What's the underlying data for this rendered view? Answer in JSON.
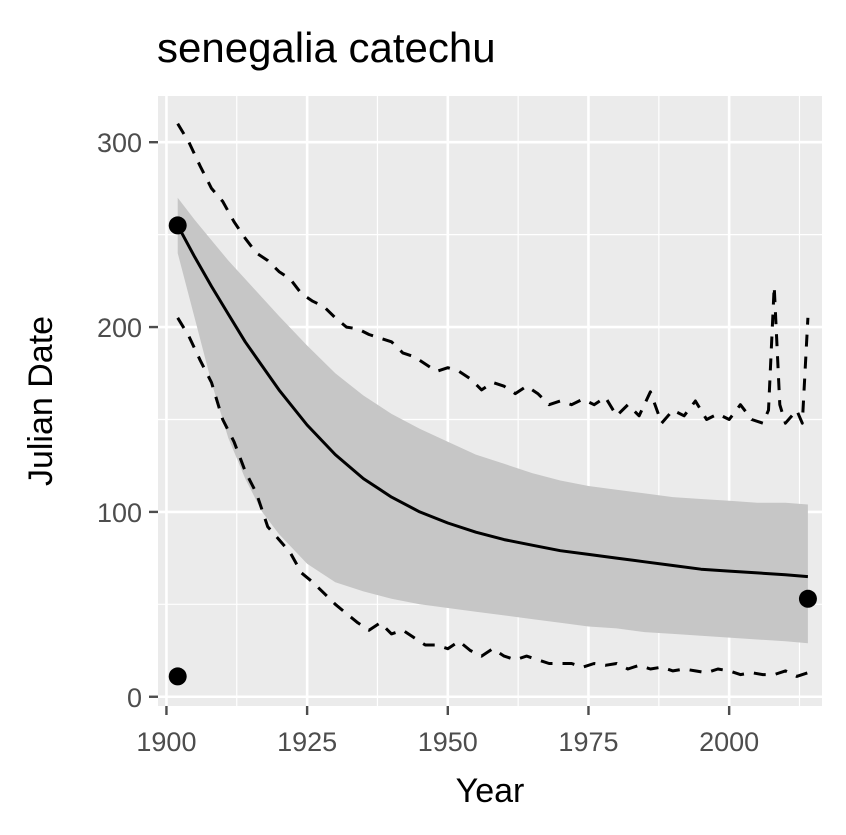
{
  "chart_data": {
    "type": "line",
    "title": "senegalia catechu",
    "xlabel": "Year",
    "ylabel": "Julian Date",
    "xlim": [
      1898.5,
      2016.5
    ],
    "ylim": [
      -5,
      325
    ],
    "x_ticks": [
      1900,
      1925,
      1950,
      1975,
      2000
    ],
    "y_ticks": [
      0,
      100,
      200,
      300
    ],
    "x_tick_labels": [
      "1900",
      "1925",
      "1950",
      "1975",
      "2000"
    ],
    "y_tick_labels": [
      "0",
      "100",
      "200",
      "300"
    ],
    "grid": true,
    "legend": "none",
    "colors": {
      "panel": "#ebebeb",
      "grid": "#ffffff",
      "ribbon": "#c6c6c6",
      "line": "#000000",
      "tick": "#4d4d4d"
    },
    "series": [
      {
        "role": "fit",
        "style": "solid",
        "x": [
          1902,
          1905,
          1908,
          1911,
          1914,
          1917,
          1920,
          1925,
          1930,
          1935,
          1940,
          1945,
          1950,
          1955,
          1960,
          1965,
          1970,
          1975,
          1980,
          1985,
          1990,
          1995,
          2000,
          2005,
          2010,
          2014
        ],
        "y": [
          255,
          238,
          222,
          207,
          192,
          179,
          166,
          147,
          131,
          118,
          108,
          100,
          94,
          89,
          85,
          82,
          79,
          77,
          75,
          73,
          71,
          69,
          68,
          67,
          66,
          65
        ]
      },
      {
        "role": "upper-dashed",
        "style": "dashed",
        "x": [
          1902,
          1904,
          1906,
          1908,
          1910,
          1912,
          1914,
          1916,
          1918,
          1920,
          1922,
          1924,
          1926,
          1928,
          1930,
          1932,
          1934,
          1936,
          1938,
          1940,
          1942,
          1944,
          1946,
          1948,
          1950,
          1952,
          1954,
          1956,
          1958,
          1960,
          1962,
          1964,
          1966,
          1968,
          1970,
          1972,
          1974,
          1976,
          1978,
          1980,
          1982,
          1984,
          1986,
          1988,
          1990,
          1992,
          1994,
          1996,
          1998,
          2000,
          2002,
          2004,
          2006,
          2007,
          2008,
          2009,
          2010,
          2012,
          2013,
          2014
        ],
        "y": [
          310,
          300,
          287,
          275,
          268,
          257,
          248,
          240,
          236,
          230,
          226,
          218,
          214,
          211,
          205,
          200,
          199,
          196,
          194,
          192,
          186,
          184,
          180,
          176,
          178,
          176,
          172,
          166,
          170,
          168,
          164,
          168,
          164,
          158,
          160,
          158,
          161,
          158,
          162,
          152,
          158,
          152,
          165,
          148,
          155,
          152,
          160,
          150,
          153,
          150,
          158,
          150,
          148,
          155,
          222,
          158,
          148,
          155,
          148,
          205
        ]
      },
      {
        "role": "lower-dashed",
        "style": "dashed",
        "x": [
          1902,
          1904,
          1906,
          1908,
          1910,
          1912,
          1914,
          1916,
          1918,
          1920,
          1922,
          1924,
          1926,
          1928,
          1930,
          1932,
          1934,
          1936,
          1938,
          1940,
          1942,
          1944,
          1946,
          1948,
          1950,
          1952,
          1954,
          1956,
          1958,
          1960,
          1962,
          1964,
          1966,
          1968,
          1970,
          1972,
          1974,
          1976,
          1978,
          1980,
          1982,
          1984,
          1986,
          1988,
          1990,
          1992,
          1994,
          1996,
          1998,
          2000,
          2002,
          2004,
          2006,
          2008,
          2010,
          2012,
          2014
        ],
        "y": [
          205,
          195,
          182,
          170,
          150,
          138,
          122,
          110,
          92,
          85,
          78,
          67,
          62,
          56,
          50,
          45,
          40,
          36,
          40,
          34,
          36,
          32,
          28,
          28,
          26,
          30,
          25,
          22,
          26,
          22,
          20,
          22,
          20,
          18,
          18,
          18,
          16,
          18,
          17,
          18,
          15,
          17,
          15,
          16,
          14,
          15,
          14,
          13,
          15,
          14,
          12,
          13,
          12,
          12,
          14,
          11,
          13
        ]
      }
    ],
    "ribbon": {
      "x": [
        1902,
        1905,
        1908,
        1911,
        1914,
        1917,
        1920,
        1925,
        1930,
        1935,
        1940,
        1945,
        1950,
        1955,
        1960,
        1965,
        1970,
        1975,
        1980,
        1985,
        1990,
        1995,
        2000,
        2005,
        2010,
        2014
      ],
      "ymin": [
        240,
        205,
        170,
        140,
        118,
        100,
        88,
        72,
        62,
        57,
        53,
        50,
        48,
        46,
        44,
        42,
        40,
        38,
        37,
        35,
        34,
        33,
        32,
        31,
        30,
        29
      ],
      "ymax": [
        270,
        258,
        247,
        236,
        226,
        216,
        206,
        190,
        175,
        163,
        153,
        145,
        138,
        131,
        126,
        121,
        117,
        114,
        112,
        110,
        108,
        107,
        106,
        105,
        105,
        104
      ]
    },
    "points": {
      "x": [
        1902,
        1902,
        2014
      ],
      "y": [
        255,
        11,
        53
      ]
    }
  }
}
